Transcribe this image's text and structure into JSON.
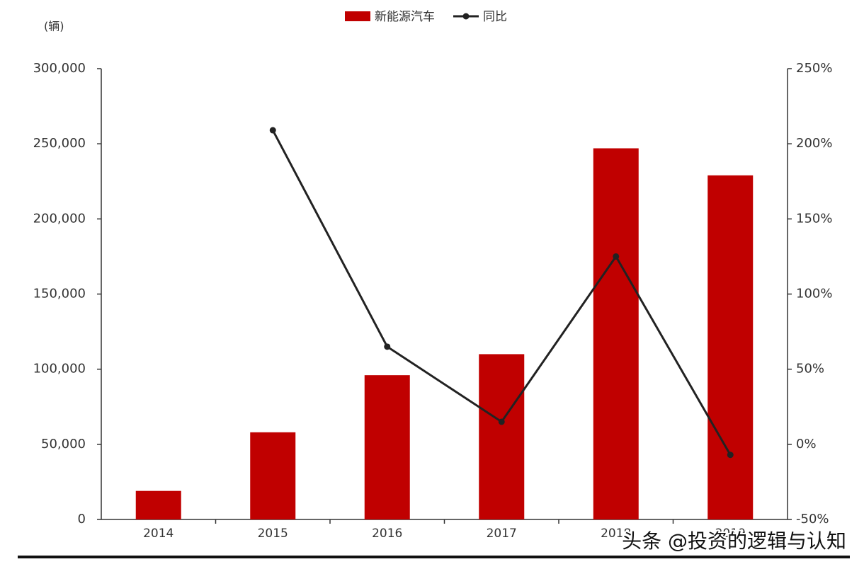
{
  "chart_data": {
    "type": "bar-line",
    "unit_label": "(辆)",
    "categories": [
      "2014",
      "2015",
      "2016",
      "2017",
      "2018",
      "2019"
    ],
    "series": [
      {
        "name": "新能源汽车",
        "type": "bar",
        "color": "#c00000",
        "values": [
          19000,
          58000,
          96000,
          110000,
          247000,
          229000
        ]
      },
      {
        "name": "同比",
        "type": "line",
        "axis": "y2",
        "color": "#222222",
        "values": [
          null,
          209,
          65,
          15,
          125,
          -7
        ]
      }
    ],
    "ylim": [
      0,
      300000
    ],
    "yticks": [
      0,
      {
        "value": 50000,
        "label": "50,000"
      },
      {
        "value": 100000,
        "label": "100,000"
      },
      {
        "value": 150000,
        "label": "150,000"
      },
      {
        "value": 200000,
        "label": "200,000"
      },
      {
        "value": 250000,
        "label": "250,000"
      },
      {
        "value": 300000,
        "label": "300,000"
      }
    ],
    "y2lim": [
      -50,
      250
    ],
    "y2ticks": [
      {
        "value": -50,
        "label": "-50%"
      },
      {
        "value": 0,
        "label": "0%"
      },
      {
        "value": 50,
        "label": "50%"
      },
      {
        "value": 100,
        "label": "100%"
      },
      {
        "value": 150,
        "label": "150%"
      },
      {
        "value": 200,
        "label": "200%"
      },
      {
        "value": 250,
        "label": "250%"
      }
    ],
    "watermark": "头条 @投资的逻辑与认知"
  }
}
